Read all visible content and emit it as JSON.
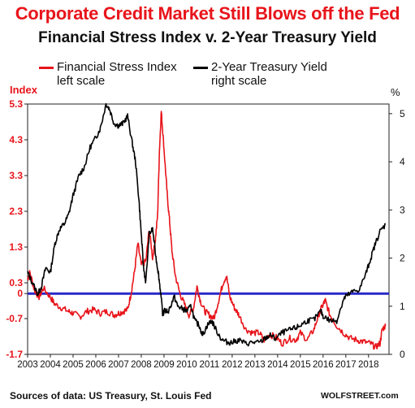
{
  "header": {
    "title": "Corporate Credit Market Still Blows off the Fed",
    "subtitle": "Financial Stress Index v. 2-Year Treasury Yield"
  },
  "footer": {
    "source": "Sources of data: US Treasury, St. Louis Fed",
    "brand": "WOLFSTREET.com"
  },
  "colors": {
    "stress": "#e8141b",
    "yield": "#000000",
    "zero_line": "#2929c8",
    "left_axis_text": "#e8141b"
  },
  "chart_data": {
    "type": "line",
    "title": "Financial Stress Index v. 2-Year Treasury Yield",
    "left_axis": {
      "title": "Index",
      "range": [
        -1.7,
        5.3
      ],
      "ticks": [
        "5.3",
        "4.3",
        "3.3",
        "2.3",
        "1.3",
        "0.3",
        "0",
        "-0.7",
        "-1.7"
      ]
    },
    "right_axis": {
      "title": "%",
      "range": [
        0,
        5.2
      ],
      "ticks": [
        "5",
        "4",
        "3",
        "2",
        "1",
        "0"
      ]
    },
    "x_axis": {
      "range": [
        2003.0,
        2018.9
      ],
      "ticks": [
        "2003",
        "2004",
        "2005",
        "2006",
        "2007",
        "2008",
        "2009",
        "2010",
        "2011",
        "2012",
        "2013",
        "2014",
        "2015",
        "2016",
        "2017",
        "2018"
      ]
    },
    "zero_line": 0,
    "series": [
      {
        "name": "Financial Stress Index",
        "legend_label": [
          "Financial Stress Index",
          "left scale"
        ],
        "axis": "left",
        "x": [
          2003.0,
          2003.1,
          2003.3,
          2003.5,
          2003.7,
          2004.0,
          2004.2,
          2004.5,
          2004.8,
          2005.0,
          2005.3,
          2005.6,
          2005.9,
          2006.2,
          2006.5,
          2006.8,
          2007.0,
          2007.2,
          2007.4,
          2007.55,
          2007.7,
          2007.85,
          2008.0,
          2008.2,
          2008.35,
          2008.5,
          2008.62,
          2008.72,
          2008.8,
          2008.88,
          2008.95,
          2009.05,
          2009.15,
          2009.25,
          2009.35,
          2009.5,
          2009.7,
          2009.9,
          2010.1,
          2010.3,
          2010.45,
          2010.6,
          2010.8,
          2011.0,
          2011.2,
          2011.4,
          2011.6,
          2011.75,
          2011.9,
          2012.1,
          2012.3,
          2012.6,
          2012.9,
          2013.2,
          2013.4,
          2013.6,
          2013.9,
          2014.2,
          2014.5,
          2014.8,
          2015.0,
          2015.3,
          2015.6,
          2015.8,
          2016.0,
          2016.1,
          2016.3,
          2016.6,
          2016.9,
          2017.2,
          2017.5,
          2017.8,
          2018.1,
          2018.3,
          2018.5,
          2018.6,
          2018.75
        ],
        "y": [
          0.4,
          0.6,
          0.1,
          -0.1,
          0.15,
          -0.1,
          -0.3,
          -0.4,
          -0.5,
          -0.55,
          -0.65,
          -0.5,
          -0.45,
          -0.55,
          -0.5,
          -0.6,
          -0.55,
          -0.5,
          -0.45,
          0.0,
          0.6,
          1.4,
          0.8,
          0.9,
          1.8,
          1.0,
          1.5,
          2.2,
          4.0,
          5.1,
          4.5,
          3.6,
          2.7,
          2.0,
          1.2,
          0.5,
          0.0,
          -0.3,
          -0.6,
          -0.4,
          0.2,
          -0.2,
          -0.5,
          -0.6,
          -0.7,
          -0.2,
          0.3,
          0.5,
          -0.1,
          -0.4,
          -0.6,
          -1.0,
          -1.1,
          -1.1,
          -1.3,
          -1.15,
          -1.2,
          -1.4,
          -1.25,
          -1.3,
          -1.1,
          -1.3,
          -1.0,
          -0.6,
          -0.3,
          -0.2,
          -0.6,
          -0.9,
          -1.1,
          -1.25,
          -1.3,
          -1.35,
          -1.4,
          -1.5,
          -1.4,
          -1.0,
          -0.9
        ]
      },
      {
        "name": "2-Year Treasury Yield",
        "legend_label": [
          "2-Year Treasury Yield",
          "right scale"
        ],
        "axis": "right",
        "x": [
          2003.0,
          2003.2,
          2003.45,
          2003.6,
          2003.8,
          2004.0,
          2004.2,
          2004.4,
          2004.6,
          2004.8,
          2005.0,
          2005.25,
          2005.5,
          2005.75,
          2006.0,
          2006.2,
          2006.45,
          2006.6,
          2006.8,
          2007.0,
          2007.2,
          2007.4,
          2007.6,
          2007.75,
          2007.9,
          2008.0,
          2008.1,
          2008.2,
          2008.35,
          2008.5,
          2008.65,
          2008.75,
          2008.85,
          2008.95,
          2009.0,
          2009.2,
          2009.45,
          2009.6,
          2009.8,
          2010.0,
          2010.2,
          2010.35,
          2010.55,
          2010.7,
          2010.9,
          2011.1,
          2011.3,
          2011.55,
          2011.8,
          2012.0,
          2012.3,
          2012.6,
          2012.9,
          2013.2,
          2013.5,
          2013.7,
          2013.9,
          2014.2,
          2014.5,
          2014.8,
          2015.0,
          2015.3,
          2015.6,
          2015.9,
          2016.0,
          2016.3,
          2016.6,
          2016.9,
          2017.0,
          2017.3,
          2017.6,
          2017.9,
          2018.1,
          2018.3,
          2018.5,
          2018.75
        ],
        "y": [
          1.7,
          1.5,
          1.25,
          1.4,
          1.8,
          1.7,
          2.3,
          2.6,
          2.7,
          2.9,
          3.3,
          3.7,
          3.9,
          4.3,
          4.5,
          4.7,
          5.2,
          5.1,
          4.8,
          4.75,
          4.8,
          4.95,
          4.4,
          4.0,
          3.2,
          2.5,
          1.8,
          1.5,
          2.5,
          2.6,
          2.0,
          1.7,
          1.3,
          0.8,
          0.9,
          0.9,
          1.2,
          1.0,
          0.95,
          0.9,
          1.0,
          0.7,
          0.6,
          0.4,
          0.6,
          0.7,
          0.5,
          0.3,
          0.25,
          0.25,
          0.3,
          0.22,
          0.25,
          0.24,
          0.35,
          0.4,
          0.32,
          0.45,
          0.5,
          0.55,
          0.6,
          0.7,
          0.72,
          0.9,
          0.8,
          0.7,
          0.7,
          1.15,
          1.2,
          1.3,
          1.35,
          1.7,
          2.0,
          2.3,
          2.55,
          2.7
        ]
      }
    ]
  }
}
